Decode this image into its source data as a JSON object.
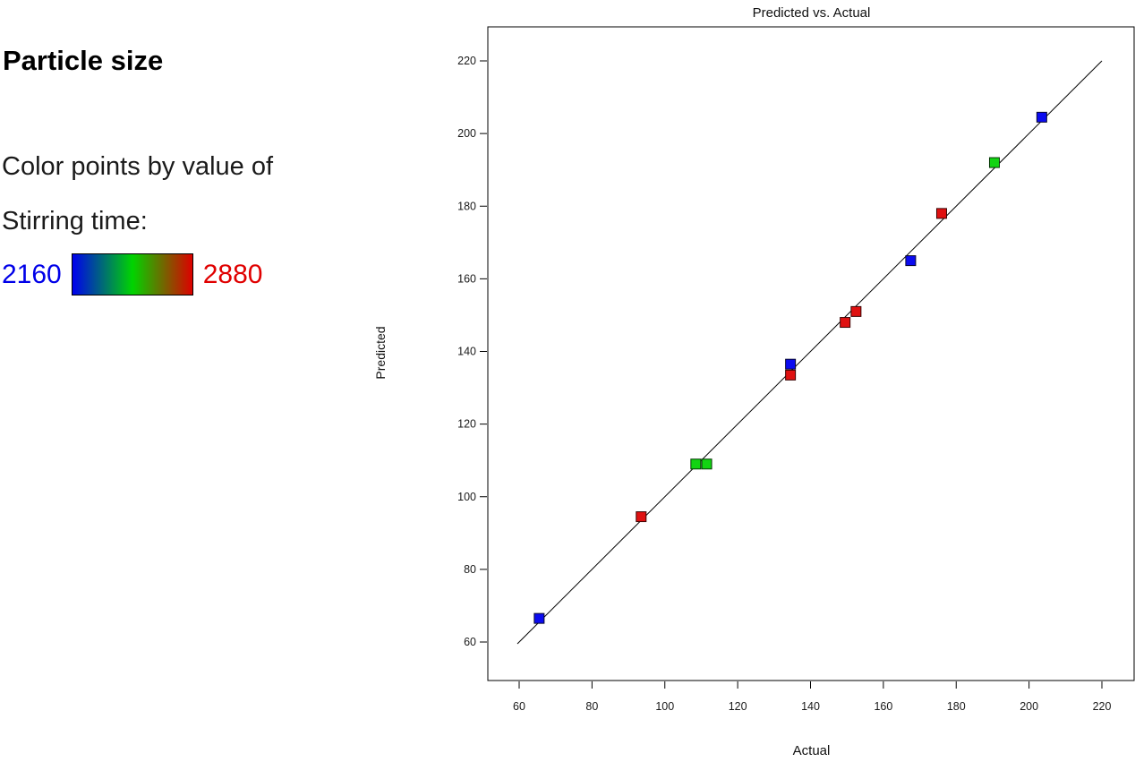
{
  "left_panel": {
    "title": "Particle size",
    "caption_line1": "Color points by value of",
    "caption_line2": "Stirring time:",
    "legend_min": "2160",
    "legend_max": "2880",
    "legend_min_color": "#0000e8",
    "legend_max_color": "#e00000",
    "gradient": [
      "#0000ee",
      "#00d400",
      "#dd0000"
    ]
  },
  "chart_data": {
    "type": "scatter",
    "title": "Predicted vs. Actual",
    "xlabel": "Actual",
    "ylabel": "Predicted",
    "xlim": [
      60,
      220
    ],
    "ylim": [
      60,
      220
    ],
    "x_ticks": [
      60,
      80,
      100,
      120,
      140,
      160,
      180,
      200,
      220
    ],
    "y_ticks": [
      60,
      80,
      100,
      120,
      140,
      160,
      180,
      200,
      220
    ],
    "grid": false,
    "identity_line": {
      "from": 60,
      "to": 220
    },
    "color_by": "Stirring time",
    "color_scale": {
      "low_label": "2160",
      "high_label": "2880"
    },
    "palette": {
      "blue": {
        "fill": "#0b0bf0",
        "edge": "#08082e"
      },
      "green": {
        "fill": "#12d412",
        "edge": "#063806"
      },
      "red": {
        "fill": "#df1111",
        "edge": "#3a0404"
      }
    },
    "marker": {
      "shape": "square",
      "size": 11
    },
    "points": [
      {
        "x": 65.5,
        "y": 66.5,
        "color": "blue"
      },
      {
        "x": 93.5,
        "y": 94.5,
        "color": "red"
      },
      {
        "x": 108.5,
        "y": 109,
        "color": "green"
      },
      {
        "x": 111.5,
        "y": 109,
        "color": "green"
      },
      {
        "x": 134.5,
        "y": 136.5,
        "color": "blue"
      },
      {
        "x": 134.5,
        "y": 133.5,
        "color": "red"
      },
      {
        "x": 149.5,
        "y": 148,
        "color": "red"
      },
      {
        "x": 152.5,
        "y": 151,
        "color": "red"
      },
      {
        "x": 167.5,
        "y": 165,
        "color": "blue"
      },
      {
        "x": 176,
        "y": 178,
        "color": "red"
      },
      {
        "x": 190.5,
        "y": 192,
        "color": "green"
      },
      {
        "x": 203.5,
        "y": 204.5,
        "color": "blue"
      }
    ]
  }
}
